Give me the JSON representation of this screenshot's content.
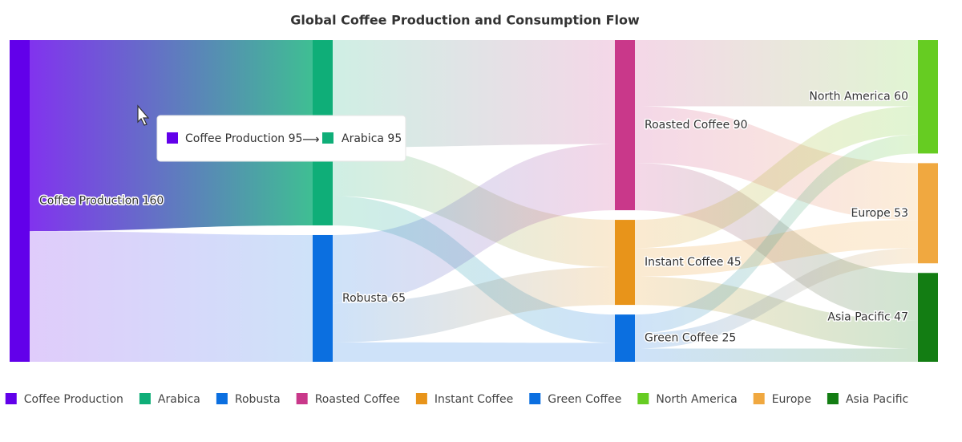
{
  "chart_data": {
    "type": "sankey",
    "title": "Global Coffee Production and Consumption Flow",
    "nodes": [
      {
        "name": "Coffee Production",
        "value": 160,
        "color": "#6200ea"
      },
      {
        "name": "Arabica",
        "value": 95,
        "color": "#0fae78"
      },
      {
        "name": "Robusta",
        "value": 65,
        "color": "#0b6fe0"
      },
      {
        "name": "Roasted Coffee",
        "value": 90,
        "color": "#c9388a"
      },
      {
        "name": "Instant Coffee",
        "value": 45,
        "color": "#e8941a"
      },
      {
        "name": "Green Coffee",
        "value": 25,
        "color": "#0b6fe0"
      },
      {
        "name": "North America",
        "value": 60,
        "color": "#66cc22"
      },
      {
        "name": "Europe",
        "value": 53,
        "color": "#f0a840"
      },
      {
        "name": "Asia Pacific",
        "value": 47,
        "color": "#137d13"
      }
    ],
    "links": [
      {
        "source": 0,
        "target": 1,
        "value": 95
      },
      {
        "source": 0,
        "target": 2,
        "value": 65
      },
      {
        "source": 1,
        "target": 3,
        "value": 55
      },
      {
        "source": 1,
        "target": 4,
        "value": 25
      },
      {
        "source": 1,
        "target": 5,
        "value": 15
      },
      {
        "source": 2,
        "target": 3,
        "value": 35
      },
      {
        "source": 2,
        "target": 4,
        "value": 20
      },
      {
        "source": 2,
        "target": 5,
        "value": 10
      },
      {
        "source": 3,
        "target": 6,
        "value": 35
      },
      {
        "source": 3,
        "target": 7,
        "value": 30
      },
      {
        "source": 3,
        "target": 8,
        "value": 25
      },
      {
        "source": 4,
        "target": 6,
        "value": 15
      },
      {
        "source": 4,
        "target": 7,
        "value": 15
      },
      {
        "source": 4,
        "target": 8,
        "value": 15
      },
      {
        "source": 5,
        "target": 6,
        "value": 10
      },
      {
        "source": 5,
        "target": 7,
        "value": 8
      },
      {
        "source": 5,
        "target": 8,
        "value": 7
      }
    ]
  }
}
